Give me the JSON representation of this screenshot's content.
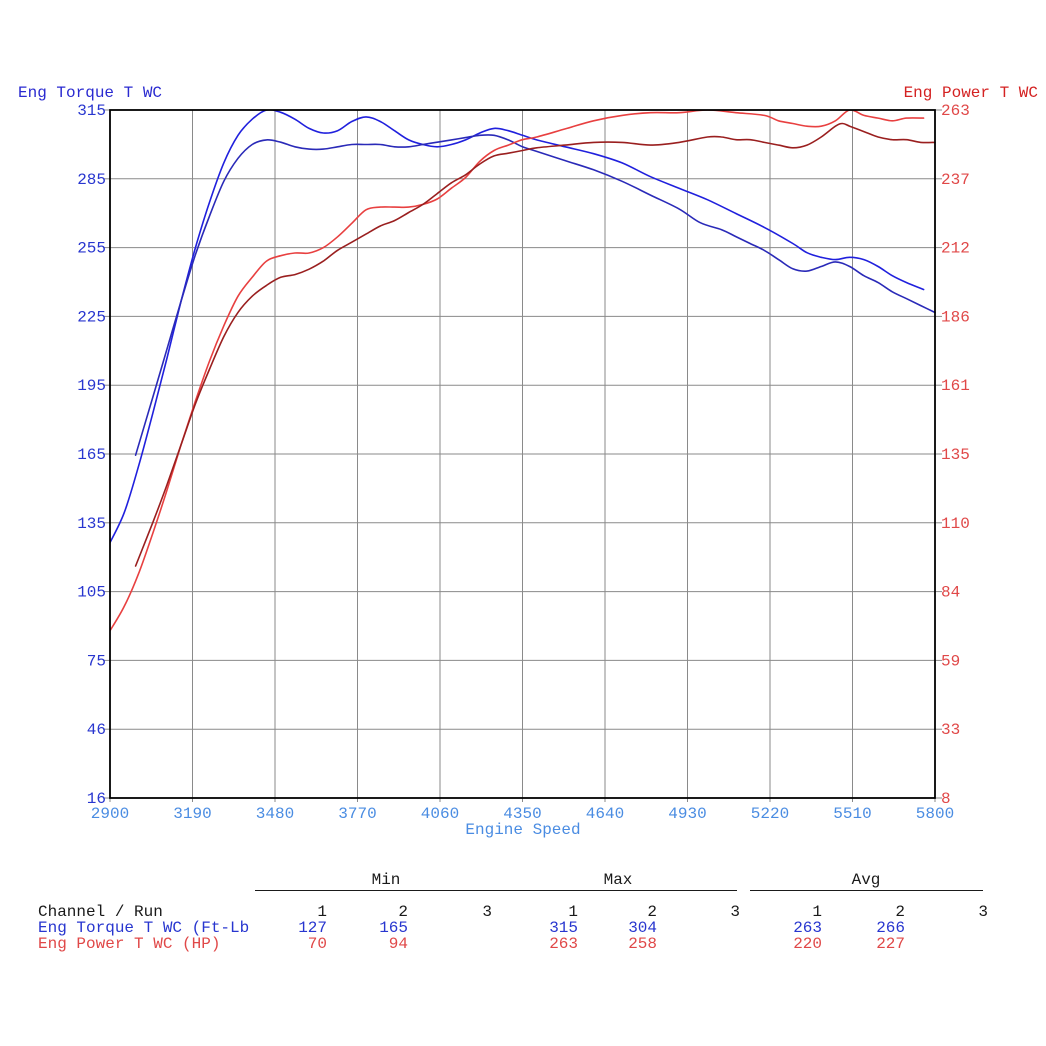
{
  "chart": {
    "left_axis_title": "Eng Torque T WC",
    "right_axis_title": "Eng Power T WC",
    "x_axis_title": "Engine Speed",
    "colors": {
      "left_tick_labels": "#2836cf",
      "right_tick_labels": "#e04848",
      "x_tick_labels": "#4a8ce2",
      "grid": "#8a8a8a",
      "border": "#000000"
    }
  },
  "chart_data": {
    "type": "line",
    "title": "",
    "xlabel": "Engine Speed",
    "ylabel_left": "Eng Torque T WC",
    "ylabel_right": "Eng Power T WC",
    "grid": true,
    "xlim": [
      2900,
      5800
    ],
    "left_ylim": [
      16,
      315
    ],
    "right_ylim": [
      8,
      263
    ],
    "x_ticks": [
      2900,
      3190,
      3480,
      3770,
      4060,
      4350,
      4640,
      4930,
      5220,
      5510,
      5800
    ],
    "left_ticks": [
      315,
      285,
      255,
      225,
      195,
      165,
      135,
      105,
      75,
      46,
      16
    ],
    "right_ticks": [
      263,
      237,
      212,
      186,
      161,
      135,
      110,
      84,
      59,
      33,
      8
    ],
    "series": [
      {
        "name": "Eng Torque T WC run 1",
        "axis": "left",
        "color": "#2020dd",
        "points": [
          [
            2900,
            127
          ],
          [
            2950,
            140
          ],
          [
            3000,
            160
          ],
          [
            3050,
            183
          ],
          [
            3100,
            207
          ],
          [
            3150,
            232
          ],
          [
            3200,
            255
          ],
          [
            3250,
            275
          ],
          [
            3300,
            292
          ],
          [
            3350,
            304
          ],
          [
            3400,
            311
          ],
          [
            3450,
            315
          ],
          [
            3500,
            314
          ],
          [
            3550,
            311
          ],
          [
            3600,
            307
          ],
          [
            3650,
            305
          ],
          [
            3700,
            306
          ],
          [
            3750,
            310
          ],
          [
            3800,
            312
          ],
          [
            3850,
            310
          ],
          [
            3900,
            306
          ],
          [
            3950,
            302
          ],
          [
            4000,
            300
          ],
          [
            4050,
            299
          ],
          [
            4100,
            300
          ],
          [
            4150,
            302
          ],
          [
            4200,
            305
          ],
          [
            4250,
            307
          ],
          [
            4300,
            306
          ],
          [
            4350,
            304
          ],
          [
            4400,
            302
          ],
          [
            4500,
            299
          ],
          [
            4600,
            296
          ],
          [
            4700,
            292
          ],
          [
            4800,
            286
          ],
          [
            4900,
            281
          ],
          [
            5000,
            276
          ],
          [
            5100,
            270
          ],
          [
            5200,
            264
          ],
          [
            5300,
            257
          ],
          [
            5350,
            253
          ],
          [
            5400,
            251
          ],
          [
            5450,
            250
          ],
          [
            5500,
            251
          ],
          [
            5550,
            250
          ],
          [
            5600,
            247
          ],
          [
            5650,
            243
          ],
          [
            5700,
            240
          ],
          [
            5760,
            237
          ]
        ]
      },
      {
        "name": "Eng Torque T WC run 2",
        "axis": "left",
        "color": "#2a2ab8",
        "points": [
          [
            2990,
            165
          ],
          [
            3050,
            190
          ],
          [
            3100,
            211
          ],
          [
            3150,
            232
          ],
          [
            3200,
            252
          ],
          [
            3250,
            269
          ],
          [
            3300,
            284
          ],
          [
            3350,
            294
          ],
          [
            3400,
            300
          ],
          [
            3450,
            302
          ],
          [
            3500,
            301
          ],
          [
            3550,
            299
          ],
          [
            3600,
            298
          ],
          [
            3650,
            298
          ],
          [
            3700,
            299
          ],
          [
            3750,
            300
          ],
          [
            3800,
            300
          ],
          [
            3850,
            300
          ],
          [
            3900,
            299
          ],
          [
            3950,
            299
          ],
          [
            4000,
            300
          ],
          [
            4050,
            301
          ],
          [
            4100,
            302
          ],
          [
            4150,
            303
          ],
          [
            4200,
            304
          ],
          [
            4250,
            304
          ],
          [
            4300,
            302
          ],
          [
            4350,
            299
          ],
          [
            4400,
            297
          ],
          [
            4500,
            293
          ],
          [
            4600,
            289
          ],
          [
            4700,
            284
          ],
          [
            4800,
            278
          ],
          [
            4900,
            272
          ],
          [
            4975,
            266
          ],
          [
            5050,
            263
          ],
          [
            5100,
            260
          ],
          [
            5150,
            257
          ],
          [
            5200,
            254
          ],
          [
            5250,
            250
          ],
          [
            5300,
            246
          ],
          [
            5350,
            245
          ],
          [
            5400,
            247
          ],
          [
            5450,
            249
          ],
          [
            5500,
            247
          ],
          [
            5550,
            243
          ],
          [
            5600,
            240
          ],
          [
            5650,
            236
          ],
          [
            5700,
            233
          ],
          [
            5750,
            230
          ],
          [
            5800,
            227
          ]
        ]
      },
      {
        "name": "Eng Power T WC run 1",
        "axis": "right",
        "color": "#e84040",
        "points": [
          [
            2900,
            70
          ],
          [
            2950,
            79
          ],
          [
            3000,
            91
          ],
          [
            3050,
            106
          ],
          [
            3100,
            122
          ],
          [
            3150,
            139
          ],
          [
            3200,
            155
          ],
          [
            3250,
            170
          ],
          [
            3300,
            183
          ],
          [
            3350,
            194
          ],
          [
            3400,
            201
          ],
          [
            3450,
            207
          ],
          [
            3500,
            209
          ],
          [
            3550,
            210
          ],
          [
            3600,
            210
          ],
          [
            3650,
            212
          ],
          [
            3700,
            216
          ],
          [
            3750,
            221
          ],
          [
            3800,
            226
          ],
          [
            3850,
            227
          ],
          [
            3900,
            227
          ],
          [
            3950,
            227
          ],
          [
            4000,
            228
          ],
          [
            4050,
            230
          ],
          [
            4100,
            234
          ],
          [
            4150,
            238
          ],
          [
            4200,
            244
          ],
          [
            4250,
            248
          ],
          [
            4300,
            250
          ],
          [
            4350,
            252
          ],
          [
            4400,
            253
          ],
          [
            4500,
            256
          ],
          [
            4600,
            259
          ],
          [
            4700,
            261
          ],
          [
            4800,
            262
          ],
          [
            4900,
            262
          ],
          [
            5000,
            263
          ],
          [
            5100,
            262
          ],
          [
            5200,
            261
          ],
          [
            5250,
            259
          ],
          [
            5300,
            258
          ],
          [
            5350,
            257
          ],
          [
            5400,
            257
          ],
          [
            5450,
            259
          ],
          [
            5500,
            263
          ],
          [
            5550,
            261
          ],
          [
            5600,
            260
          ],
          [
            5650,
            259
          ],
          [
            5700,
            260
          ],
          [
            5760,
            260
          ]
        ]
      },
      {
        "name": "Eng Power T WC run 2",
        "axis": "right",
        "color": "#9a1f1f",
        "points": [
          [
            2990,
            94
          ],
          [
            3050,
            110
          ],
          [
            3100,
            124
          ],
          [
            3150,
            139
          ],
          [
            3200,
            154
          ],
          [
            3250,
            167
          ],
          [
            3300,
            179
          ],
          [
            3350,
            188
          ],
          [
            3400,
            194
          ],
          [
            3450,
            198
          ],
          [
            3500,
            201
          ],
          [
            3550,
            202
          ],
          [
            3600,
            204
          ],
          [
            3650,
            207
          ],
          [
            3700,
            211
          ],
          [
            3750,
            214
          ],
          [
            3800,
            217
          ],
          [
            3850,
            220
          ],
          [
            3900,
            222
          ],
          [
            3950,
            225
          ],
          [
            4000,
            228
          ],
          [
            4050,
            232
          ],
          [
            4100,
            236
          ],
          [
            4150,
            239
          ],
          [
            4200,
            243
          ],
          [
            4250,
            246
          ],
          [
            4300,
            247
          ],
          [
            4350,
            248
          ],
          [
            4400,
            249
          ],
          [
            4500,
            250
          ],
          [
            4600,
            251
          ],
          [
            4700,
            251
          ],
          [
            4800,
            250
          ],
          [
            4900,
            251
          ],
          [
            5000,
            253
          ],
          [
            5050,
            253
          ],
          [
            5100,
            252
          ],
          [
            5150,
            252
          ],
          [
            5200,
            251
          ],
          [
            5250,
            250
          ],
          [
            5300,
            249
          ],
          [
            5350,
            250
          ],
          [
            5400,
            253
          ],
          [
            5450,
            257
          ],
          [
            5475,
            258
          ],
          [
            5500,
            257
          ],
          [
            5550,
            255
          ],
          [
            5600,
            253
          ],
          [
            5650,
            252
          ],
          [
            5700,
            252
          ],
          [
            5750,
            251
          ],
          [
            5800,
            251
          ]
        ]
      }
    ]
  },
  "table": {
    "group_headers": [
      "Min",
      "Max",
      "Avg"
    ],
    "run_headers": [
      "1",
      "2",
      "3"
    ],
    "channel_header": "Channel / Run",
    "rows": [
      {
        "label": "Eng Torque T WC (Ft-Lb",
        "color": "#2836cf",
        "min": [
          "127",
          "165",
          ""
        ],
        "max": [
          "315",
          "304",
          ""
        ],
        "avg": [
          "263",
          "266",
          ""
        ]
      },
      {
        "label": "Eng Power T WC (HP)",
        "color": "#e04848",
        "min": [
          "70",
          "94",
          ""
        ],
        "max": [
          "263",
          "258",
          ""
        ],
        "avg": [
          "220",
          "227",
          ""
        ]
      }
    ]
  }
}
